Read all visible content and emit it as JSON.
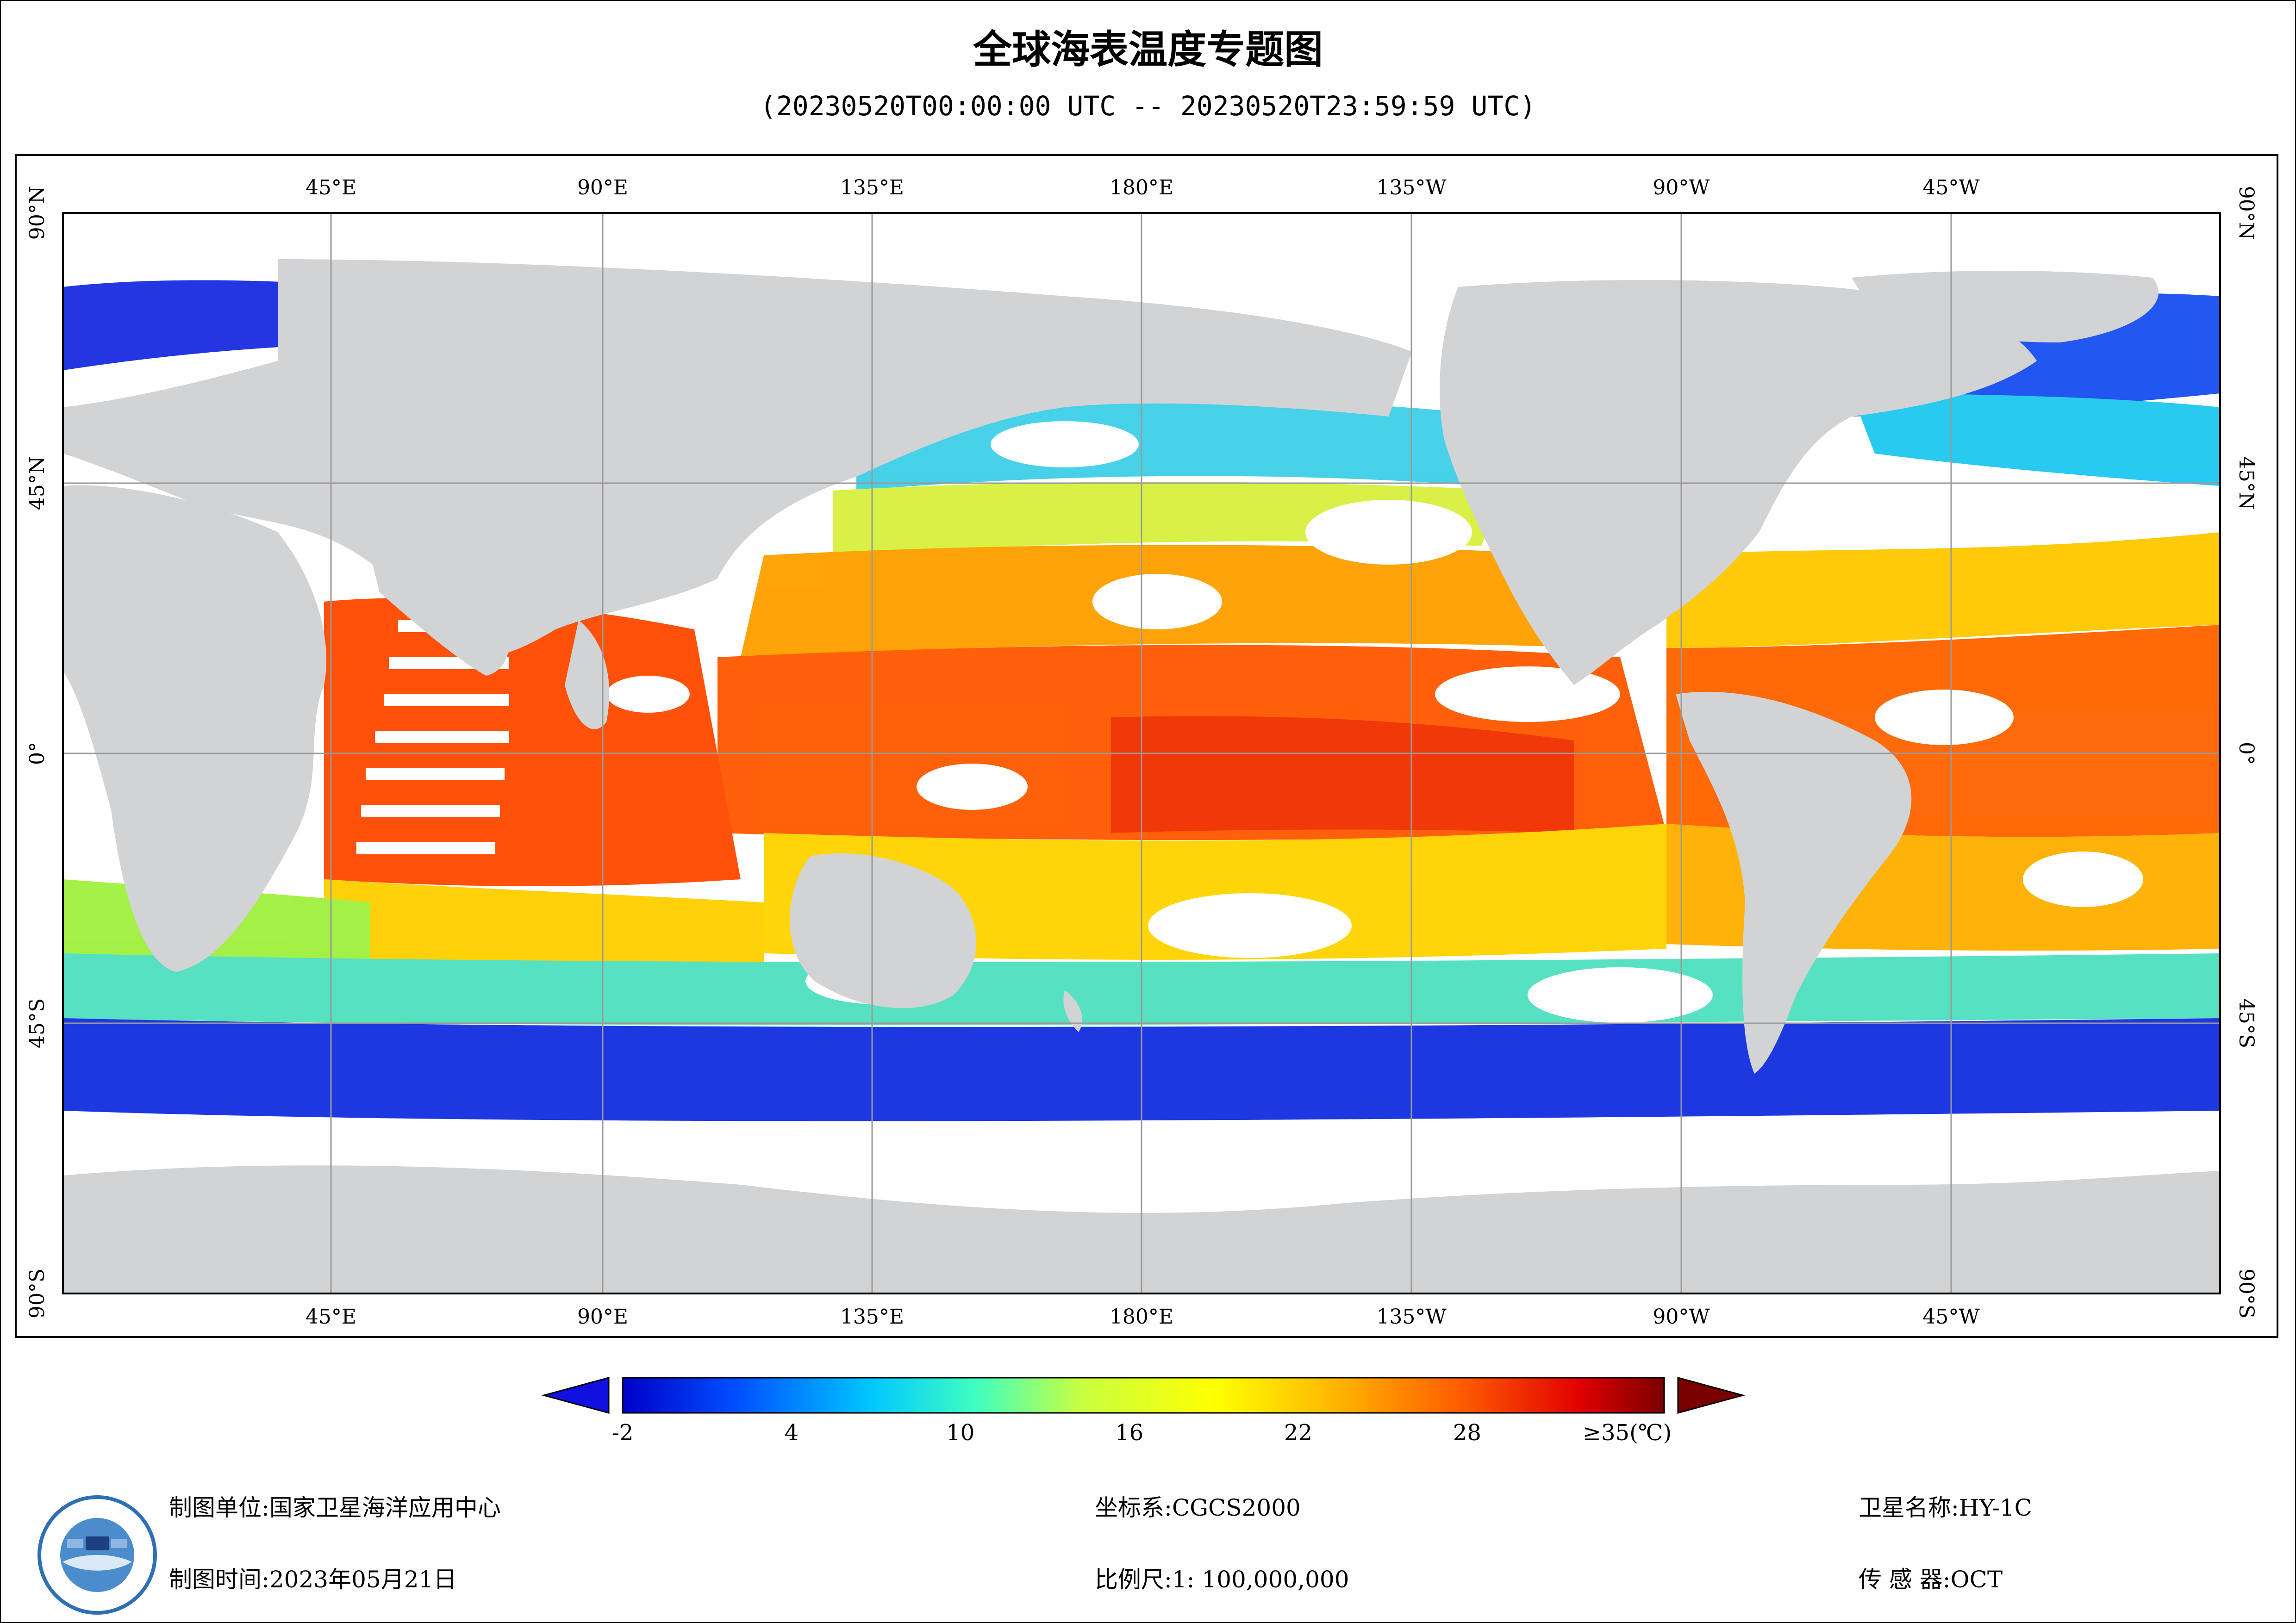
{
  "title": "全球海表温度专题图",
  "subtitle": "(20230520T00:00:00 UTC -- 20230520T23:59:59 UTC)",
  "map": {
    "lon_labels_top": [
      "45°E",
      "90°E",
      "135°E",
      "180°E",
      "135°W",
      "90°W",
      "45°W"
    ],
    "lon_labels_bottom": [
      "45°E",
      "90°E",
      "135°E",
      "180°E",
      "135°W",
      "90°W",
      "45°W"
    ],
    "lat_labels_left": [
      "90°N",
      "45°N",
      "0°",
      "45°S",
      "90°S"
    ],
    "lat_labels_right": [
      "90°N",
      "45°N",
      "0°",
      "45°S",
      "90°S"
    ],
    "projection_center": "180°E",
    "colors": {
      "land": "#d2d3d5",
      "cloud": "#ffffff",
      "grid": "#9a9a9a"
    }
  },
  "legend": {
    "tick_labels": [
      "-2",
      "4",
      "10",
      "16",
      "22",
      "28",
      "≥35(℃)"
    ],
    "tick_values": [
      -2,
      4,
      10,
      16,
      22,
      28,
      35
    ],
    "min": -2,
    "max": 35,
    "low_color": "#1010e0",
    "high_color": "#7a0000",
    "colormap": [
      "#0000c8",
      "#0050ff",
      "#00c8ff",
      "#40ffc0",
      "#c8ff40",
      "#ffff00",
      "#ffc000",
      "#ff6000",
      "#e00000",
      "#7a0000"
    ]
  },
  "footer": {
    "maker_label": "制图单位:",
    "maker_value": "国家卫星海洋应用中心",
    "time_label": "制图时间:",
    "time_value": "2023年05月21日",
    "crs_label": "坐标系:",
    "crs_value": "CGCS2000",
    "scale_label": "比例尺:",
    "scale_value": "1: 100,000,000",
    "satellite_label": "卫星名称:",
    "satellite_value": "HY-1C",
    "sensor_label": "传 感 器:",
    "sensor_value": "OCT"
  }
}
